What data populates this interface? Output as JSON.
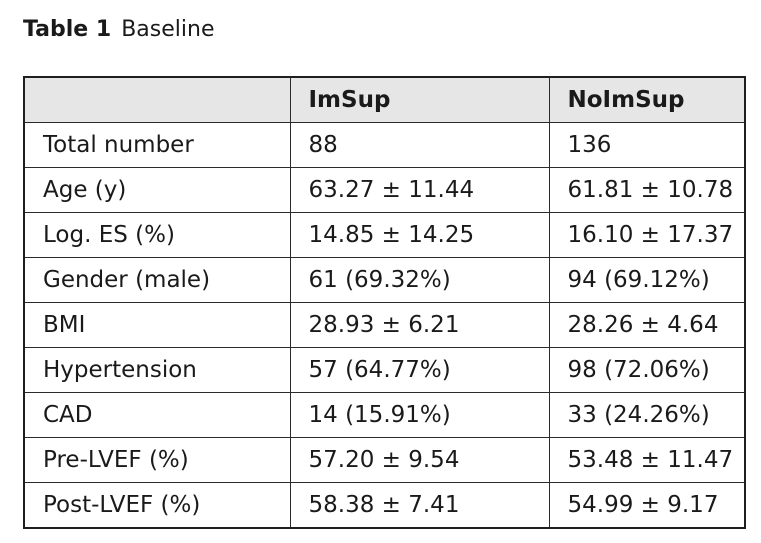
{
  "caption": {
    "label": "Table 1",
    "title": "Baseline"
  },
  "table": {
    "headers": [
      "",
      "ImSup",
      "NoImSup"
    ],
    "rows": [
      [
        "Total number",
        "88",
        "136"
      ],
      [
        "Age (y)",
        "63.27 ± 11.44",
        "61.81 ± 10.78"
      ],
      [
        "Log. ES (%)",
        "14.85 ± 14.25",
        "16.10 ± 17.37"
      ],
      [
        "Gender (male)",
        "61 (69.32%)",
        "94 (69.12%)"
      ],
      [
        "BMI",
        "28.93 ± 6.21",
        "28.26 ± 4.64"
      ],
      [
        "Hypertension",
        "57 (64.77%)",
        "98 (72.06%)"
      ],
      [
        "CAD",
        "14 (15.91%)",
        "33 (24.26%)"
      ],
      [
        "Pre-LVEF (%)",
        "57.20 ± 9.54",
        "53.48 ± 11.47"
      ],
      [
        "Post-LVEF (%)",
        "58.38 ± 7.41",
        "54.99 ± 9.17"
      ]
    ]
  }
}
